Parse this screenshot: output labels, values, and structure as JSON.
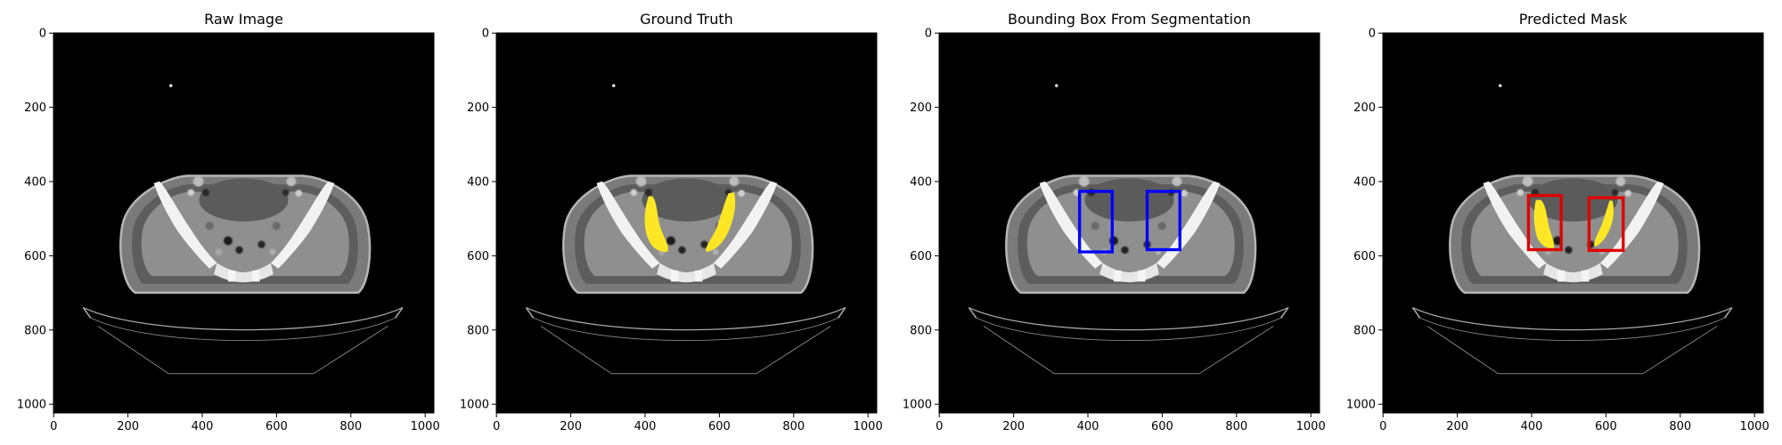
{
  "image_size": [
    1024,
    1024
  ],
  "panels": [
    {
      "title": "Raw Image",
      "overlay": "none"
    },
    {
      "title": "Ground Truth",
      "overlay": "ground-truth",
      "mask_color": "#fde725"
    },
    {
      "title": "Bounding Box From Segmentation",
      "overlay": "boxes",
      "box_color": "#0000ff",
      "boxes": [
        [
          378,
          427,
          466,
          590
        ],
        [
          560,
          427,
          648,
          584
        ]
      ]
    },
    {
      "title": "Predicted Mask",
      "overlay": "prediction",
      "mask_color": "#fde725",
      "box_color": "#e00000",
      "boxes": [
        [
          392,
          438,
          480,
          584
        ],
        [
          555,
          444,
          647,
          586
        ]
      ]
    }
  ],
  "axes": {
    "x_ticks": [
      0,
      200,
      400,
      600,
      800,
      1000
    ],
    "y_ticks": [
      0,
      200,
      400,
      600,
      800,
      1000
    ]
  }
}
